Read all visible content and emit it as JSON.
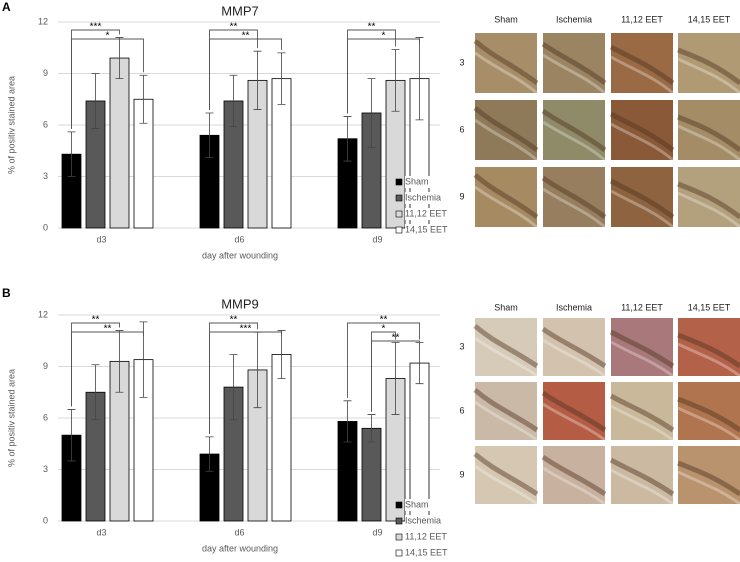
{
  "panel_labels": [
    "A",
    "B"
  ],
  "chart_data": [
    {
      "type": "bar",
      "title": "MMP7",
      "y_label": "% of positiv stained area",
      "x_label": "day after wounding",
      "categories": [
        "d3",
        "d6",
        "d9"
      ],
      "ylim": [
        0,
        12
      ],
      "yticks": [
        0,
        3,
        6,
        9,
        12
      ],
      "grid": true,
      "legend": "lower right",
      "series": [
        {
          "name": "Sham",
          "color": "#000000",
          "values": [
            4.3,
            5.4,
            5.2
          ],
          "errors": [
            1.3,
            1.3,
            1.3
          ]
        },
        {
          "name": "Ischemia",
          "color": "#595959",
          "values": [
            7.4,
            7.4,
            6.7
          ],
          "errors": [
            1.6,
            1.5,
            2.0
          ]
        },
        {
          "name": "11,12 EET",
          "color": "#d9d9d9",
          "values": [
            9.9,
            8.6,
            8.6
          ],
          "errors": [
            1.2,
            1.7,
            1.8
          ]
        },
        {
          "name": "14,15 EET",
          "color": "#ffffff",
          "values": [
            7.5,
            8.7,
            8.7
          ],
          "errors": [
            1.4,
            1.5,
            2.4
          ]
        }
      ],
      "brackets": [
        {
          "category": "d3",
          "from": "Sham",
          "to": "11,12 EET",
          "label": "***"
        },
        {
          "category": "d3",
          "from": "Sham",
          "to": "14,15 EET",
          "label": "*"
        },
        {
          "category": "d6",
          "from": "Sham",
          "to": "11,12 EET",
          "label": "**"
        },
        {
          "category": "d6",
          "from": "Sham",
          "to": "14,15 EET",
          "label": "**"
        },
        {
          "category": "d9",
          "from": "Sham",
          "to": "11,12 EET",
          "label": "**"
        },
        {
          "category": "d9",
          "from": "Sham",
          "to": "14,15 EET",
          "label": "*"
        }
      ]
    },
    {
      "type": "bar",
      "title": "MMP9",
      "y_label": "% of positiv stained area",
      "x_label": "day after wounding",
      "categories": [
        "d3",
        "d6",
        "d9"
      ],
      "ylim": [
        0,
        12
      ],
      "yticks": [
        0,
        3,
        6,
        9,
        12
      ],
      "grid": true,
      "legend": "lower right",
      "series": [
        {
          "name": "Sham",
          "color": "#000000",
          "values": [
            5.0,
            3.9,
            5.8
          ],
          "errors": [
            1.5,
            1.0,
            1.2
          ]
        },
        {
          "name": "Ischemia",
          "color": "#595959",
          "values": [
            7.5,
            7.8,
            5.4
          ],
          "errors": [
            1.6,
            1.9,
            0.8
          ]
        },
        {
          "name": "11,12 EET",
          "color": "#d9d9d9",
          "values": [
            9.3,
            8.8,
            8.3
          ],
          "errors": [
            1.8,
            2.2,
            2.1
          ]
        },
        {
          "name": "14,15 EET",
          "color": "#ffffff",
          "values": [
            9.4,
            9.7,
            9.2
          ],
          "errors": [
            2.2,
            1.4,
            1.2
          ]
        }
      ],
      "brackets": [
        {
          "category": "d3",
          "from": "Sham",
          "to": "11,12 EET",
          "label": "**"
        },
        {
          "category": "d3",
          "from": "Sham",
          "to": "14,15 EET",
          "label": "**"
        },
        {
          "category": "d6",
          "from": "Sham",
          "to": "11,12 EET",
          "label": "**"
        },
        {
          "category": "d6",
          "from": "Sham",
          "to": "14,15 EET",
          "label": "***"
        },
        {
          "category": "d9",
          "from": "Sham",
          "to": "14,15 EET",
          "label": "**"
        },
        {
          "category": "d9",
          "from": "Ischemia",
          "to": "11,12 EET",
          "label": "*"
        },
        {
          "category": "d9",
          "from": "Ischemia",
          "to": "14,15 EET",
          "label": "**"
        }
      ]
    }
  ],
  "micrographs": [
    {
      "columns": [
        "Sham",
        "Ischemia",
        "11,12 EET",
        "14,15 EET"
      ],
      "rows": [
        "3",
        "6",
        "9"
      ]
    },
    {
      "columns": [
        "Sham",
        "Ischemia",
        "11,12 EET",
        "14,15 EET"
      ],
      "rows": [
        "3",
        "6",
        "9"
      ]
    }
  ]
}
